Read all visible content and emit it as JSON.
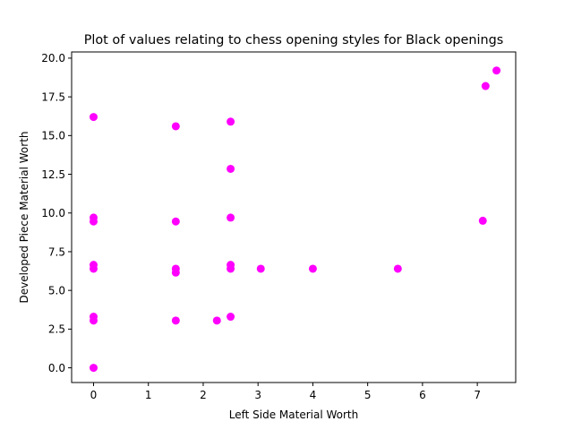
{
  "chart_data": {
    "type": "scatter",
    "title": "Plot of values relating to chess opening styles for Black openings",
    "xlabel": "Left Side Material Worth",
    "ylabel": "Developed Piece Material Worth",
    "xlim": [
      -0.4,
      7.7
    ],
    "ylim": [
      -0.95,
      20.4
    ],
    "xticks": [
      0,
      1,
      2,
      3,
      4,
      5,
      6,
      7
    ],
    "xtick_labels": [
      "0",
      "1",
      "2",
      "3",
      "4",
      "5",
      "6",
      "7"
    ],
    "yticks": [
      0.0,
      2.5,
      5.0,
      7.5,
      10.0,
      12.5,
      15.0,
      17.5,
      20.0
    ],
    "ytick_labels": [
      "0.0",
      "2.5",
      "5.0",
      "7.5",
      "10.0",
      "12.5",
      "15.0",
      "17.5",
      "20.0"
    ],
    "grid": false,
    "marker_color": "#ff00ff",
    "points": [
      {
        "x": 0.0,
        "y": 16.2
      },
      {
        "x": 0.0,
        "y": 9.7
      },
      {
        "x": 0.0,
        "y": 9.45
      },
      {
        "x": 0.0,
        "y": 6.65
      },
      {
        "x": 0.0,
        "y": 6.4
      },
      {
        "x": 0.0,
        "y": 3.3
      },
      {
        "x": 0.0,
        "y": 3.05
      },
      {
        "x": 0.0,
        "y": 0.0
      },
      {
        "x": 1.5,
        "y": 15.6
      },
      {
        "x": 1.5,
        "y": 9.45
      },
      {
        "x": 1.5,
        "y": 6.4
      },
      {
        "x": 1.5,
        "y": 6.15
      },
      {
        "x": 1.5,
        "y": 3.05
      },
      {
        "x": 2.25,
        "y": 3.05
      },
      {
        "x": 2.5,
        "y": 15.9
      },
      {
        "x": 2.5,
        "y": 12.85
      },
      {
        "x": 2.5,
        "y": 9.7
      },
      {
        "x": 2.5,
        "y": 6.65
      },
      {
        "x": 2.5,
        "y": 6.4
      },
      {
        "x": 2.5,
        "y": 3.3
      },
      {
        "x": 3.05,
        "y": 6.4
      },
      {
        "x": 4.0,
        "y": 6.4
      },
      {
        "x": 5.55,
        "y": 6.4
      },
      {
        "x": 7.1,
        "y": 9.5
      },
      {
        "x": 7.15,
        "y": 18.2
      },
      {
        "x": 7.35,
        "y": 19.2
      }
    ]
  }
}
